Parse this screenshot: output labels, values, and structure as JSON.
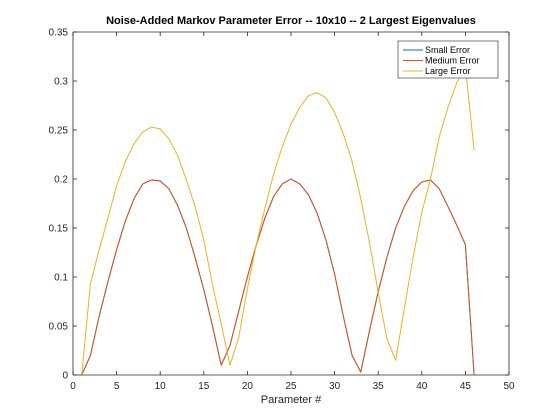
{
  "chart_data": {
    "type": "line",
    "title": "Noise-Added Markov Parameter Error -- 10x10 -- 2 Largest Eigenvalues",
    "xlabel": "Parameter #",
    "ylabel": "",
    "xlim": [
      0,
      50
    ],
    "ylim": [
      0,
      0.35
    ],
    "xticks": [
      0,
      5,
      10,
      15,
      20,
      25,
      30,
      35,
      40,
      45,
      50
    ],
    "yticks": [
      0,
      0.05,
      0.1,
      0.15,
      0.2,
      0.25,
      0.3,
      0.35
    ],
    "x": [
      1,
      2,
      3,
      4,
      5,
      6,
      7,
      8,
      9,
      10,
      11,
      12,
      13,
      14,
      15,
      16,
      17,
      18,
      19,
      20,
      21,
      22,
      23,
      24,
      25,
      26,
      27,
      28,
      29,
      30,
      31,
      32,
      33,
      34,
      35,
      36,
      37,
      38,
      39,
      40,
      41,
      42,
      43,
      44,
      45,
      46
    ],
    "legend_position": "top-right",
    "grid": false,
    "series": [
      {
        "name": "Small Error",
        "color": "#0072bd",
        "values": [
          0,
          0.02,
          0.06,
          0.095,
          0.128,
          0.157,
          0.18,
          0.195,
          0.199,
          0.198,
          0.19,
          0.173,
          0.15,
          0.12,
          0.087,
          0.05,
          0.01,
          0.03,
          0.065,
          0.1,
          0.132,
          0.16,
          0.182,
          0.195,
          0.2,
          0.195,
          0.184,
          0.165,
          0.138,
          0.103,
          0.06,
          0.02,
          0.003,
          0.045,
          0.085,
          0.12,
          0.15,
          0.172,
          0.188,
          0.197,
          0.199,
          0.19,
          0.172,
          0.153,
          0.133,
          0
        ]
      },
      {
        "name": "Medium Error",
        "color": "#d95319",
        "values": [
          0,
          0.02,
          0.06,
          0.095,
          0.128,
          0.157,
          0.18,
          0.195,
          0.199,
          0.198,
          0.19,
          0.173,
          0.15,
          0.12,
          0.087,
          0.05,
          0.01,
          0.03,
          0.065,
          0.1,
          0.132,
          0.16,
          0.182,
          0.195,
          0.2,
          0.195,
          0.184,
          0.165,
          0.138,
          0.103,
          0.06,
          0.02,
          0.003,
          0.045,
          0.085,
          0.12,
          0.15,
          0.172,
          0.188,
          0.197,
          0.199,
          0.19,
          0.172,
          0.153,
          0.133,
          0
        ]
      },
      {
        "name": "Large Error",
        "color": "#edb120",
        "values": [
          0,
          0.093,
          0.128,
          0.16,
          0.193,
          0.218,
          0.236,
          0.248,
          0.253,
          0.251,
          0.241,
          0.224,
          0.199,
          0.172,
          0.138,
          0.092,
          0.052,
          0.01,
          0.038,
          0.088,
          0.132,
          0.17,
          0.205,
          0.233,
          0.256,
          0.273,
          0.285,
          0.288,
          0.283,
          0.268,
          0.246,
          0.218,
          0.18,
          0.135,
          0.084,
          0.037,
          0.015,
          0.068,
          0.12,
          0.166,
          0.2,
          0.243,
          0.273,
          0.298,
          0.315,
          0.229
        ]
      }
    ]
  }
}
